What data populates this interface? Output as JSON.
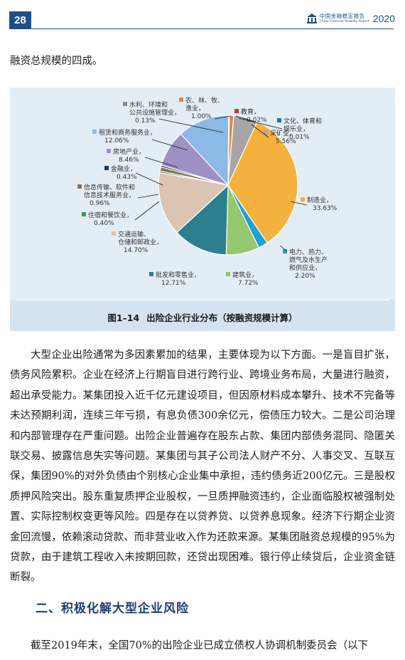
{
  "header": {
    "page_number": "28",
    "brand_cn": "中国金融稳定报告",
    "brand_en": "China Financial Stability Report",
    "brand_year": "2020",
    "logo_icon": "pboc-building-icon",
    "accent_color": "#1f4e8a"
  },
  "lead_text": "融资总规模的四成。",
  "figure": {
    "caption_number": "图1–14",
    "caption_title": "出险企业行业分布（按融资规模计算）"
  },
  "chart_data": {
    "type": "pie",
    "title": "",
    "slices": [
      {
        "label": "农、林、牧、渔业",
        "value": 1.0,
        "color": "#e8853c"
      },
      {
        "label": "教育",
        "value": 0.02,
        "color": "#c0392b"
      },
      {
        "label": "文化、体育和娱乐业",
        "value": 0.01,
        "color": "#2e6da4"
      },
      {
        "label": "采矿业",
        "value": 5.56,
        "color": "#a6a6a6"
      },
      {
        "label": "制造业",
        "value": 33.63,
        "color": "#f5b13d"
      },
      {
        "label": "电力、热力、燃气及水生产和供应业",
        "value": 2.2,
        "color": "#1ea0d8"
      },
      {
        "label": "建筑业",
        "value": 7.72,
        "color": "#96c66e"
      },
      {
        "label": "批发和零售业",
        "value": 12.71,
        "color": "#2d7f8f"
      },
      {
        "label": "交通运输、仓储和邮政业",
        "value": 14.7,
        "color": "#dcc4b2"
      },
      {
        "label": "住宿和餐饮业",
        "value": 0.4,
        "color": "#2e9a5a"
      },
      {
        "label": "信息传输、软件和信息技术服务业",
        "value": 0.96,
        "color": "#8a6f52"
      },
      {
        "label": "金融业",
        "value": 0.43,
        "color": "#1c3a6e"
      },
      {
        "label": "房地产业",
        "value": 8.46,
        "color": "#9e90c4"
      },
      {
        "label": "租赁和商务服务业",
        "value": 12.06,
        "color": "#8cb9e6"
      },
      {
        "label": "水利、环境和公共设施管理业",
        "value": 0.13,
        "color": "#8a8a8a"
      }
    ],
    "labels": {
      "water": [
        "水利、环境和",
        "公共设施管理业，",
        "0.13%"
      ],
      "agri": [
        "农、林、牧、",
        "渔业，",
        "1.00%"
      ],
      "edu": [
        "教育，",
        "0.02%"
      ],
      "culture": [
        "文化、体育和",
        "娱乐业，",
        "0.01%"
      ],
      "mining": [
        "采矿业，",
        "5.56%"
      ],
      "lease": [
        "租赁和商务服务业，",
        "12.06%"
      ],
      "realestate": [
        "房地产业，",
        "8.46%"
      ],
      "finance": [
        "金融业，",
        "0.43%"
      ],
      "infotech": [
        "信息传输、软件和",
        "信息技术服务业，",
        "0.96%"
      ],
      "hotel": [
        "住宿和餐饮业，",
        "0.40%"
      ],
      "transport": [
        "交通运输、",
        "仓储和邮政业，",
        "14.70%"
      ],
      "wholesale": [
        "批发和零售业，",
        "12.71%"
      ],
      "construction": [
        "建筑业，",
        "7.72%"
      ],
      "power": [
        "电力、热力、",
        "燃气及水生产",
        "和供应业，",
        "2.20%"
      ],
      "manufacturing": [
        "制造业，",
        "33.63%"
      ]
    }
  },
  "body_text": "大型企业出险通常为多因素累加的结果，主要体现为以下方面。一是盲目扩张，债务风险累积。企业在经济上行期盲目进行跨行业、跨境业务布局，大量进行融资，超出承受能力。某集团投入近千亿元建设项目，但因原材料成本攀升、技术不完备等未达预期利润，连续三年亏损，有息负债300余亿元，偿债压力较大。二是公司治理和内部管理存在严重问题。出险企业普遍存在股东占款、集团内部债务混同、隐匿关联交易、披露信息失实等问题。某集团与其子公司法人财产不分、人事交叉、互联互保，集团90%的对外负债由个别核心企业集中承担，违约债务近200亿元。三是股权质押风险突出。股东重复质押企业股权，一旦质押融资违约，企业面临股权被强制处置、实际控制权变更等风险。四是存在以贷养贷、以贷养息现象。经济下行期企业资金回流慢，依赖滚动贷款、而非营业收入作为还款来源。某集团融资总规模的95%为贷款，由于建筑工程收入未按期回款，还贷出现困难。银行停止续贷后，企业资金链断裂。",
  "section_heading": "二、积极化解大型企业风险",
  "last_line": "截至2019年末，全国70%的出险企业已成立债权人协调机制委员会（以下"
}
